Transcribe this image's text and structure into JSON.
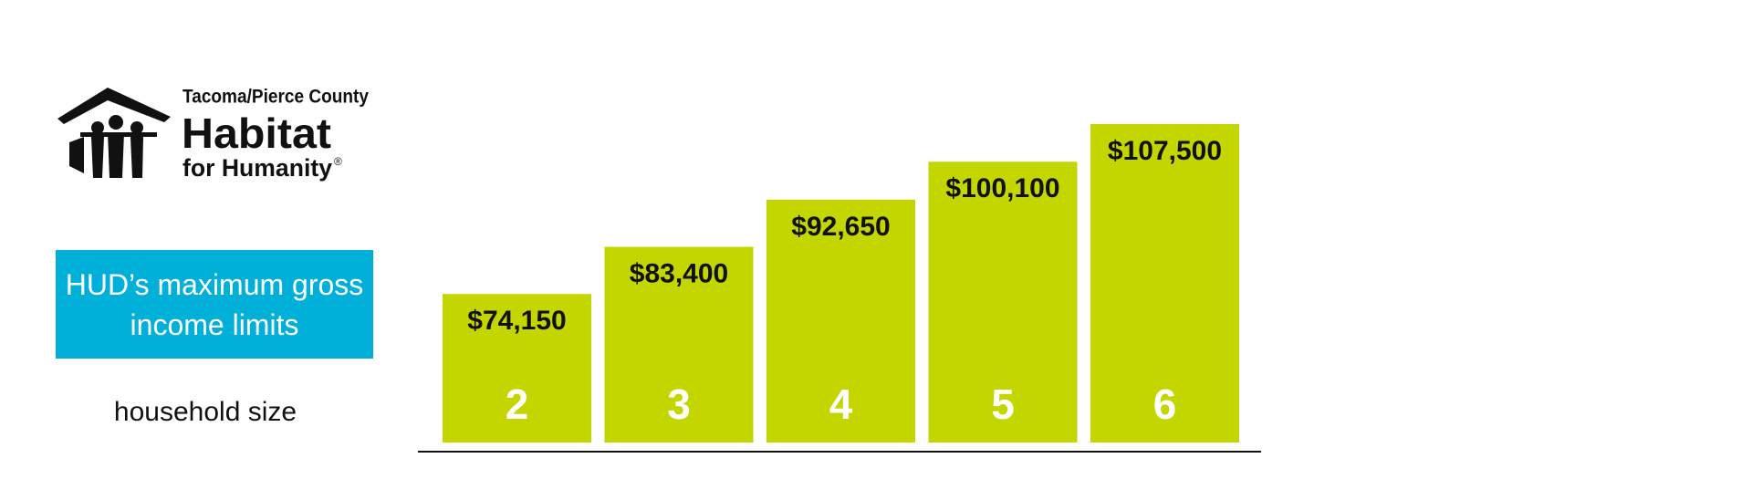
{
  "logo": {
    "line1": "Tacoma/Pierce County",
    "line2": "Habitat",
    "line3": "for Humanity",
    "mark": "®"
  },
  "chart_data": {
    "type": "bar",
    "title": "HUD’s maximum gross income limits",
    "x_label": "household size",
    "categories": [
      "2",
      "3",
      "4",
      "5",
      "6"
    ],
    "values": [
      74150,
      83400,
      92650,
      100100,
      107500
    ],
    "value_labels": [
      "$74,150",
      "$83,400",
      "$92,650",
      "$100,100",
      "$107,500"
    ],
    "color": "#c3d600",
    "ylim": [
      45000,
      110000
    ]
  }
}
